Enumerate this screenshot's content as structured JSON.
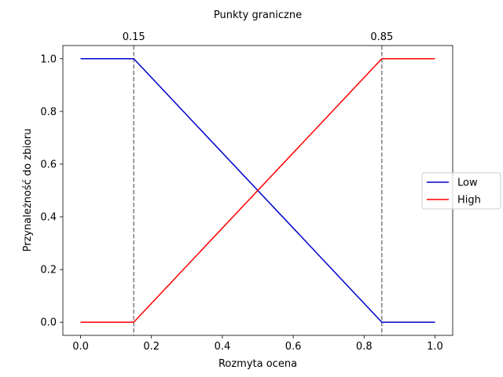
{
  "chart_data": {
    "type": "line",
    "title": "Punkty graniczne",
    "xlabel": "Rozmyta ocena",
    "ylabel": "Przynależność do zbioru",
    "xlim": [
      -0.05,
      1.05
    ],
    "ylim": [
      -0.05,
      1.05
    ],
    "xticks": [
      0.0,
      0.2,
      0.4,
      0.6,
      0.8,
      1.0
    ],
    "xtick_labels": [
      "0.0",
      "0.2",
      "0.4",
      "0.6",
      "0.8",
      "1.0"
    ],
    "yticks": [
      0.0,
      0.2,
      0.4,
      0.6,
      0.8,
      1.0
    ],
    "ytick_labels": [
      "0.0",
      "0.2",
      "0.4",
      "0.6",
      "0.8",
      "1.0"
    ],
    "grid": false,
    "legend_position": "center-right, outside axes",
    "series": [
      {
        "name": "Low",
        "color": "#0000cc",
        "points": [
          [
            0.0,
            1.0
          ],
          [
            0.15,
            1.0
          ],
          [
            0.85,
            0.0
          ],
          [
            1.0,
            0.0
          ]
        ]
      },
      {
        "name": "High",
        "color": "#ff0000",
        "points": [
          [
            0.0,
            0.0
          ],
          [
            0.15,
            0.0
          ],
          [
            0.85,
            1.0
          ],
          [
            1.0,
            1.0
          ]
        ]
      }
    ],
    "vlines": [
      {
        "x": 0.15,
        "label": "0.15",
        "style": "dashed",
        "color": "#7f7f7f"
      },
      {
        "x": 0.85,
        "label": "0.85",
        "style": "dashed",
        "color": "#7f7f7f"
      }
    ]
  }
}
